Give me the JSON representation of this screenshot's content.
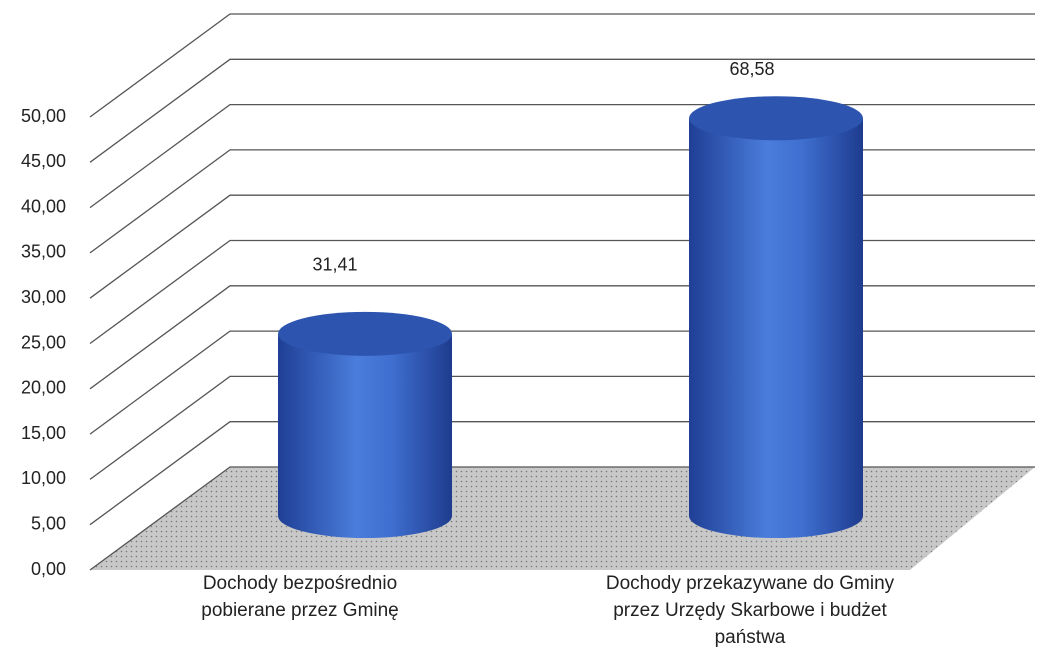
{
  "chart_data": {
    "type": "bar3d",
    "categories": [
      "Dochody bezpośrednio pobierane przez Gminę",
      "Dochody przekazywane do Gminy przez Urzędy Skarbowe i budżet państwa"
    ],
    "values": [
      31.41,
      68.58
    ],
    "value_labels": [
      "31,41",
      "68,58"
    ],
    "color": "#3a6ad0",
    "ylim": [
      0,
      50
    ],
    "yticks": [
      {
        "value": 0,
        "label": "0,00"
      },
      {
        "value": 5,
        "label": "5,00"
      },
      {
        "value": 10,
        "label": "10,00"
      },
      {
        "value": 15,
        "label": "15,00"
      },
      {
        "value": 20,
        "label": "20,00"
      },
      {
        "value": 25,
        "label": "25,00"
      },
      {
        "value": 30,
        "label": "30,00"
      },
      {
        "value": 35,
        "label": "35,00"
      },
      {
        "value": 40,
        "label": "40,00"
      },
      {
        "value": 45,
        "label": "45,00"
      },
      {
        "value": 50,
        "label": "50,00"
      }
    ],
    "grid": true
  }
}
